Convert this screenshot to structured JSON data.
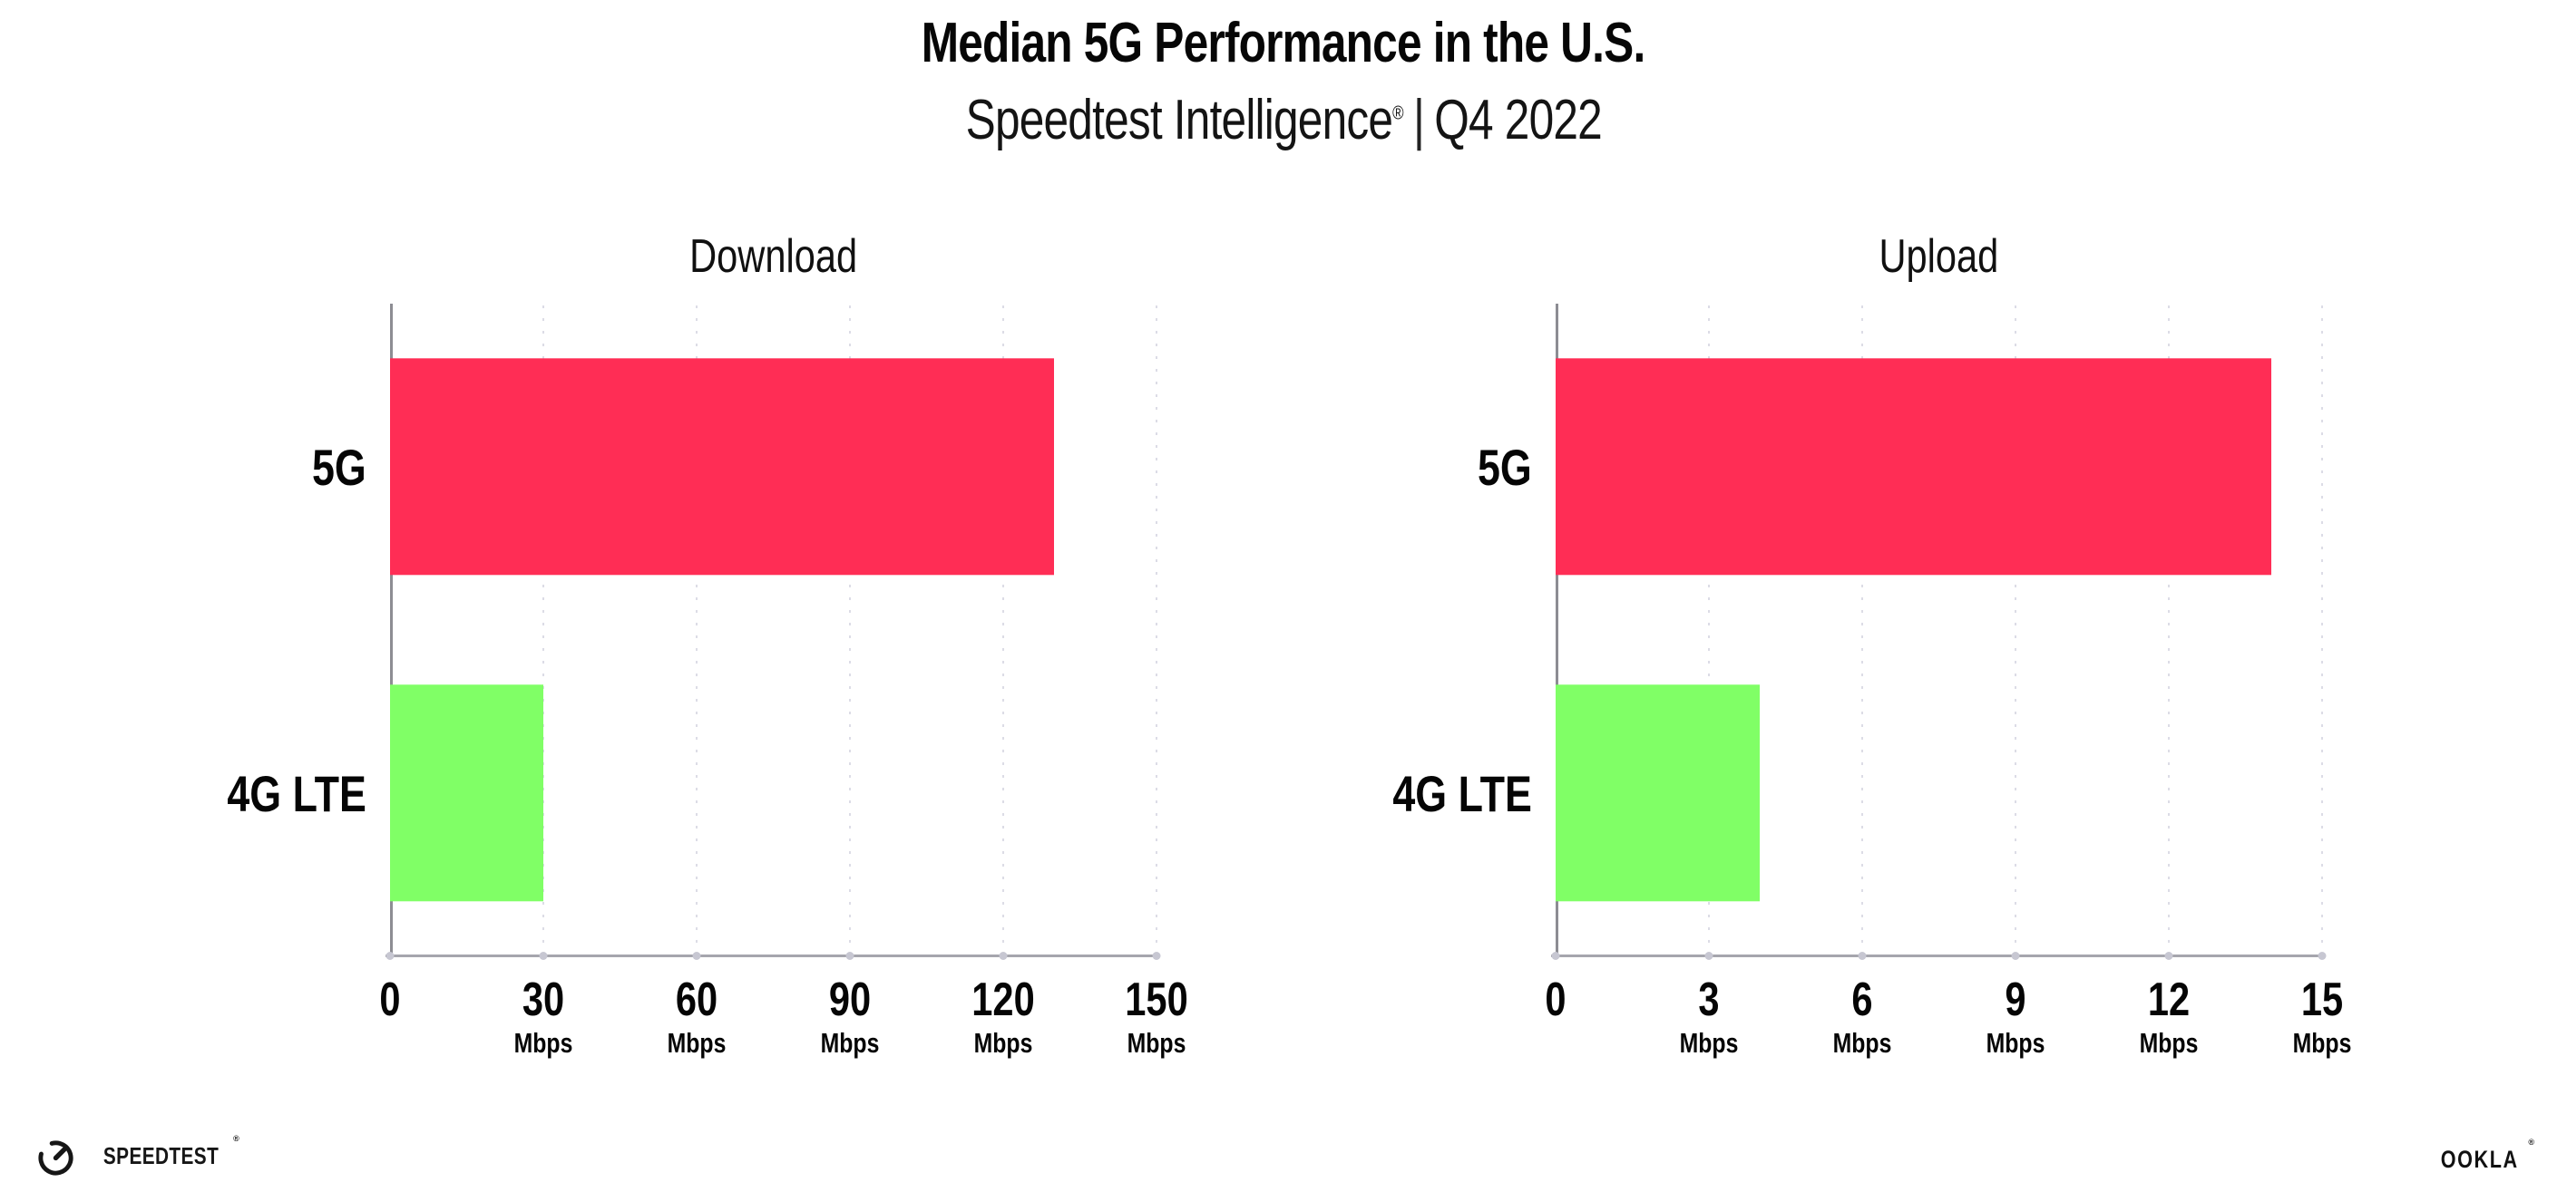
{
  "header": {
    "title": "Median 5G Performance in the U.S.",
    "subtitle_brand": "Speedtest Intelligence",
    "subtitle_registered": "®",
    "subtitle_separator": "|",
    "subtitle_period": "Q4 2022"
  },
  "chart_data": [
    {
      "type": "bar",
      "orientation": "horizontal",
      "title": "Download",
      "categories": [
        "5G",
        "4G LTE"
      ],
      "values": [
        130,
        30
      ],
      "unit": "Mbps",
      "xlim": [
        0,
        150
      ],
      "xticks": [
        0,
        30,
        60,
        90,
        120,
        150
      ],
      "bar_colors": [
        "#ff2d55",
        "#80ff66"
      ],
      "grid": "dotted-vertical",
      "legend": "none"
    },
    {
      "type": "bar",
      "orientation": "horizontal",
      "title": "Upload",
      "categories": [
        "5G",
        "4G LTE"
      ],
      "values": [
        14,
        4
      ],
      "unit": "Mbps",
      "xlim": [
        0,
        15
      ],
      "xticks": [
        0,
        3,
        6,
        9,
        12,
        15
      ],
      "bar_colors": [
        "#ff2d55",
        "#80ff66"
      ],
      "grid": "dotted-vertical",
      "legend": "none"
    }
  ],
  "footer": {
    "speedtest_logo_text": "SPEEDTEST",
    "speedtest_registered": "®",
    "ookla_logo_text": "OOKLA",
    "ookla_registered": "®"
  },
  "colors": {
    "bar_5g": "#ff2d55",
    "bar_4g_lte": "#80ff66",
    "axis_line": "#a6a6ad",
    "y_axis_line": "#8d8d93",
    "gridline_dots": "#dcdce6",
    "text": "#0c0c0c"
  }
}
